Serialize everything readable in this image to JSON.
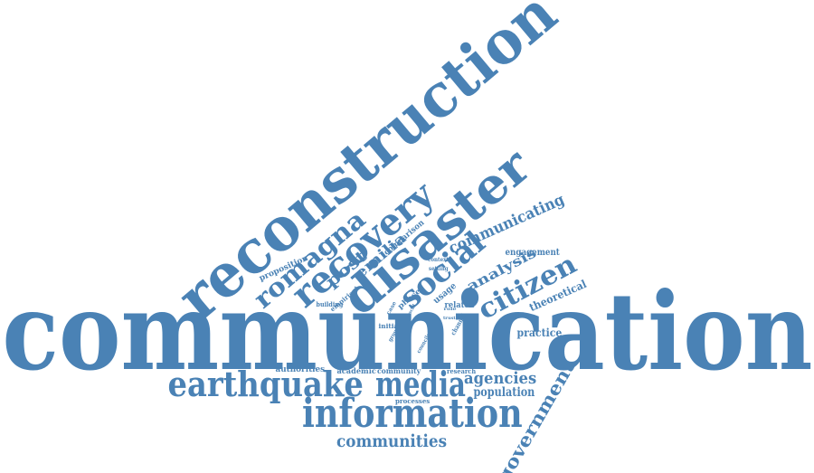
{
  "word_color": "#4a82b5",
  "background": "#ffffff",
  "words": [
    {
      "id": "communication",
      "text": "communication"
    },
    {
      "id": "reconstruction",
      "text": "reconstruction"
    },
    {
      "id": "disaster",
      "text": "disaster"
    },
    {
      "id": "recovery",
      "text": "recovery"
    },
    {
      "id": "social",
      "text": "social"
    },
    {
      "id": "romagna",
      "text": "romagna"
    },
    {
      "id": "earthquake",
      "text": "earthquake"
    },
    {
      "id": "media",
      "text": "media"
    },
    {
      "id": "information",
      "text": "information"
    },
    {
      "id": "citizen",
      "text": "citizen"
    },
    {
      "id": "government",
      "text": "government"
    },
    {
      "id": "communities",
      "text": "communities"
    },
    {
      "id": "communicating",
      "text": "communicating"
    },
    {
      "id": "agencies",
      "text": "agencies"
    },
    {
      "id": "population",
      "text": "population"
    },
    {
      "id": "emilia",
      "text": "emilia"
    },
    {
      "id": "post",
      "text": "post"
    },
    {
      "id": "analysis",
      "text": "analysis"
    },
    {
      "id": "theoretical",
      "text": "theoretical"
    },
    {
      "id": "practice",
      "text": "practice"
    },
    {
      "id": "engagement",
      "text": "engagement"
    },
    {
      "id": "proposition",
      "text": "proposition"
    },
    {
      "id": "comparison",
      "text": "comparison"
    },
    {
      "id": "empirical",
      "text": "empirical"
    },
    {
      "id": "building",
      "text": "building"
    },
    {
      "id": "phase",
      "text": "phase"
    },
    {
      "id": "usage",
      "text": "usage"
    },
    {
      "id": "related",
      "text": "related"
    },
    {
      "id": "authorities",
      "text": "authorities"
    },
    {
      "id": "academic",
      "text": "academic"
    },
    {
      "id": "community",
      "text": "community"
    },
    {
      "id": "research",
      "text": "research"
    },
    {
      "id": "processes",
      "text": "processes"
    },
    {
      "id": "initial",
      "text": "initial"
    },
    {
      "id": "context",
      "text": "context"
    },
    {
      "id": "setting",
      "text": "setting"
    },
    {
      "id": "channel",
      "text": "channel"
    },
    {
      "id": "case",
      "text": "case"
    },
    {
      "id": "group",
      "text": "group"
    },
    {
      "id": "councils",
      "text": "councils"
    },
    {
      "id": "role",
      "text": "role"
    },
    {
      "id": "local",
      "text": "local"
    },
    {
      "id": "trust",
      "text": "trust"
    }
  ]
}
